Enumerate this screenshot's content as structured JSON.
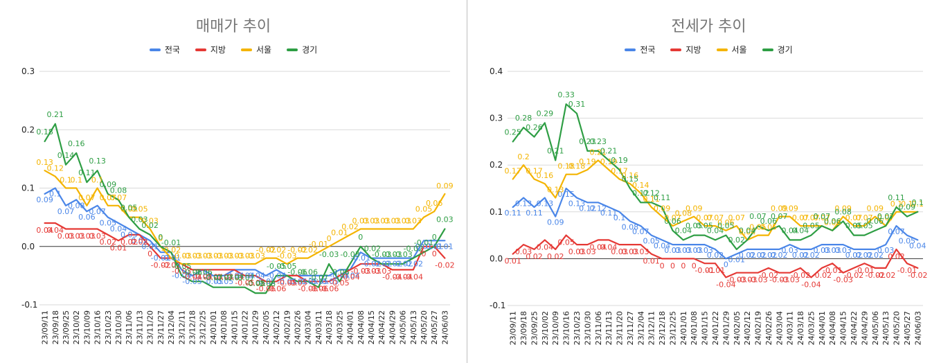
{
  "chart_data": [
    {
      "type": "line",
      "title": "매매가 추이",
      "ylim": [
        -0.1,
        0.3
      ],
      "yticks": [
        "0.3",
        "0.2",
        "0.1",
        "0.0",
        "-0.1"
      ],
      "ytick_values": [
        0.3,
        0.2,
        0.1,
        0.0,
        -0.1
      ],
      "categories": [
        "23/09/11",
        "23/09/18",
        "23/09/25",
        "23/10/02",
        "23/10/09",
        "23/10/16",
        "23/10/23",
        "23/10/30",
        "23/11/06",
        "23/11/13",
        "23/11/20",
        "23/11/27",
        "23/12/04",
        "23/12/11",
        "23/12/18",
        "23/12/25",
        "24/01/01",
        "24/01/08",
        "24/01/15",
        "24/01/22",
        "24/01/29",
        "24/02/05",
        "24/02/12",
        "24/02/19",
        "24/02/26",
        "24/03/04",
        "24/03/11",
        "24/03/18",
        "24/03/25",
        "24/04/01",
        "24/04/08",
        "24/04/15",
        "24/04/22",
        "24/04/29",
        "24/05/06",
        "24/05/13",
        "24/05/20",
        "24/05/27",
        "24/06/03"
      ],
      "series": [
        {
          "name": "전국",
          "color": "#4a86e8",
          "values": [
            0.09,
            0.1,
            0.07,
            0.08,
            0.06,
            0.07,
            0.05,
            0.04,
            0.03,
            0.02,
            0.01,
            -0.01,
            -0.01,
            -0.04,
            -0.05,
            -0.04,
            -0.05,
            -0.05,
            -0.04,
            -0.04,
            -0.04,
            -0.05,
            -0.04,
            -0.05,
            -0.05,
            -0.05,
            -0.05,
            -0.05,
            -0.04,
            -0.04,
            -0.01,
            -0.02,
            -0.02,
            -0.02,
            -0.02,
            -0.02,
            0.01,
            0.01,
            0.01
          ]
        },
        {
          "name": "지방",
          "color": "#e53935",
          "values": [
            0.04,
            0.04,
            0.03,
            0.03,
            0.03,
            0.03,
            0.02,
            0.01,
            0.02,
            0.02,
            0.0,
            -0.02,
            -0.02,
            -0.03,
            -0.04,
            -0.04,
            -0.04,
            -0.04,
            -0.04,
            -0.05,
            -0.05,
            -0.06,
            -0.06,
            -0.05,
            -0.05,
            -0.06,
            -0.06,
            -0.06,
            -0.05,
            -0.04,
            -0.03,
            -0.03,
            -0.03,
            -0.04,
            -0.04,
            -0.04,
            0.0,
            0.0,
            -0.02
          ]
        },
        {
          "name": "서울",
          "color": "#f4b400",
          "values": [
            0.13,
            0.12,
            0.1,
            0.1,
            0.07,
            0.1,
            0.07,
            0.07,
            0.05,
            0.05,
            0.03,
            0.0,
            -0.02,
            -0.03,
            -0.03,
            -0.03,
            -0.03,
            -0.03,
            -0.03,
            -0.03,
            -0.03,
            -0.02,
            -0.02,
            -0.03,
            -0.02,
            -0.02,
            -0.01,
            0.0,
            0.01,
            0.02,
            0.03,
            0.03,
            0.03,
            0.03,
            0.03,
            0.03,
            0.05,
            0.06,
            0.09
          ]
        },
        {
          "name": "경기",
          "color": "#2e9e44",
          "values": [
            0.18,
            0.21,
            0.14,
            0.16,
            0.11,
            0.13,
            0.09,
            0.08,
            0.05,
            0.03,
            0.02,
            0.0,
            -0.01,
            -0.05,
            -0.06,
            -0.06,
            -0.07,
            -0.07,
            -0.07,
            -0.07,
            -0.08,
            -0.08,
            -0.05,
            -0.05,
            -0.06,
            -0.06,
            -0.07,
            -0.03,
            -0.06,
            -0.03,
            0.0,
            -0.02,
            -0.03,
            -0.03,
            -0.03,
            -0.02,
            -0.01,
            0.0,
            0.03
          ]
        }
      ]
    },
    {
      "type": "line",
      "title": "전세가 추이",
      "ylim": [
        -0.1,
        0.4
      ],
      "yticks": [
        "0.4",
        "0.3",
        "0.2",
        "0.1",
        "0.0",
        "-0.1"
      ],
      "ytick_values": [
        0.4,
        0.3,
        0.2,
        0.1,
        0.0,
        -0.1
      ],
      "categories": [
        "23/09/11",
        "23/09/18",
        "23/09/25",
        "23/10/02",
        "23/10/09",
        "23/10/16",
        "23/10/23",
        "23/10/30",
        "23/11/06",
        "23/11/13",
        "23/11/20",
        "23/11/27",
        "23/12/04",
        "23/12/11",
        "23/12/18",
        "23/12/25",
        "24/01/01",
        "24/01/08",
        "24/01/15",
        "24/01/22",
        "24/01/29",
        "24/02/05",
        "24/02/12",
        "24/02/19",
        "24/02/26",
        "24/03/04",
        "24/03/11",
        "24/03/18",
        "24/03/25",
        "24/04/01",
        "24/04/08",
        "24/04/15",
        "24/04/22",
        "24/04/29",
        "24/05/06",
        "24/05/13",
        "24/05/20",
        "24/05/27",
        "24/06/03"
      ],
      "series": [
        {
          "name": "전국",
          "color": "#4a86e8",
          "values": [
            0.11,
            0.13,
            0.11,
            0.13,
            0.09,
            0.15,
            0.13,
            0.12,
            0.12,
            0.11,
            0.1,
            0.08,
            0.07,
            0.05,
            0.04,
            0.03,
            0.03,
            0.03,
            0.03,
            0.02,
            0.0,
            0.01,
            0.02,
            0.02,
            0.02,
            0.02,
            0.03,
            0.02,
            0.02,
            0.03,
            0.03,
            0.03,
            0.02,
            0.02,
            0.02,
            0.03,
            0.07,
            0.05,
            0.04
          ]
        },
        {
          "name": "지방",
          "color": "#e53935",
          "values": [
            0.01,
            0.03,
            0.02,
            0.04,
            0.02,
            0.05,
            0.03,
            0.03,
            0.04,
            0.04,
            0.03,
            0.03,
            0.03,
            0.01,
            0.0,
            0.0,
            0.0,
            0.0,
            -0.01,
            -0.01,
            -0.04,
            -0.03,
            -0.03,
            -0.03,
            -0.02,
            -0.03,
            -0.03,
            -0.02,
            -0.04,
            -0.02,
            -0.01,
            -0.03,
            -0.02,
            -0.01,
            -0.02,
            -0.02,
            0.02,
            -0.01,
            -0.02
          ]
        },
        {
          "name": "서울",
          "color": "#f4b400",
          "values": [
            0.17,
            0.2,
            0.17,
            0.16,
            0.13,
            0.18,
            0.18,
            0.19,
            0.21,
            0.19,
            0.17,
            0.16,
            0.14,
            0.11,
            0.09,
            0.07,
            0.08,
            0.09,
            0.07,
            0.07,
            0.06,
            0.07,
            0.04,
            0.05,
            0.05,
            0.09,
            0.09,
            0.07,
            0.07,
            0.07,
            0.06,
            0.09,
            0.07,
            0.07,
            0.09,
            0.07,
            0.1,
            0.1,
            0.1
          ]
        },
        {
          "name": "경기",
          "color": "#2e9e44",
          "values": [
            0.25,
            0.28,
            0.26,
            0.29,
            0.21,
            0.33,
            0.31,
            0.23,
            0.23,
            0.21,
            0.19,
            0.15,
            0.12,
            0.12,
            0.11,
            0.06,
            0.04,
            0.05,
            0.05,
            0.04,
            0.05,
            0.02,
            0.04,
            0.07,
            0.06,
            0.07,
            0.04,
            0.04,
            0.05,
            0.07,
            0.06,
            0.08,
            0.05,
            0.05,
            0.06,
            0.07,
            0.11,
            0.09,
            0.1
          ]
        }
      ]
    }
  ]
}
